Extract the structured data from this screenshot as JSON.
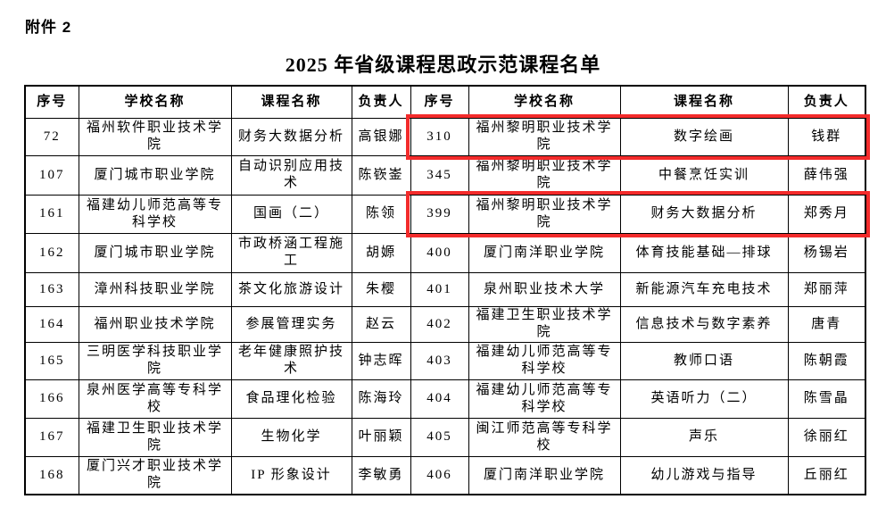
{
  "page": {
    "attachment_label": "附件 2",
    "title": "2025 年省级课程思政示范课程名单"
  },
  "highlight": {
    "color": "#f32b2b",
    "highlighted_row_numbers": [
      "310",
      "399"
    ]
  },
  "table": {
    "headers": [
      "序号",
      "学校名称",
      "课程名称",
      "负责人",
      "序号",
      "学校名称",
      "课程名称",
      "负责人"
    ],
    "rows": [
      {
        "l_no": "72",
        "l_school": "福州软件职业技术学院",
        "l_course": "财务大数据分析",
        "l_leader": "高银娜",
        "r_no": "310",
        "r_school": "福州黎明职业技术学院",
        "r_course": "数字绘画",
        "r_leader": "钱群"
      },
      {
        "l_no": "107",
        "l_school": "厦门城市职业学院",
        "l_course": "自动识别应用技术",
        "l_leader": "陈嵚崟",
        "r_no": "345",
        "r_school": "福州黎明职业技术学院",
        "r_course": "中餐烹饪实训",
        "r_leader": "薛伟强"
      },
      {
        "l_no": "161",
        "l_school": "福建幼儿师范高等专科学校",
        "l_course": "国画（二）",
        "l_leader": "陈领",
        "r_no": "399",
        "r_school": "福州黎明职业技术学院",
        "r_course": "财务大数据分析",
        "r_leader": "郑秀月"
      },
      {
        "l_no": "162",
        "l_school": "厦门城市职业学院",
        "l_course": "市政桥涵工程施工",
        "l_leader": "胡嫄",
        "r_no": "400",
        "r_school": "厦门南洋职业学院",
        "r_course": "体育技能基础—排球",
        "r_leader": "杨锡岩"
      },
      {
        "l_no": "163",
        "l_school": "漳州科技职业学院",
        "l_course": "茶文化旅游设计",
        "l_leader": "朱樱",
        "r_no": "401",
        "r_school": "泉州职业技术大学",
        "r_course": "新能源汽车充电技术",
        "r_leader": "郑丽萍"
      },
      {
        "l_no": "164",
        "l_school": "福州职业技术学院",
        "l_course": "参展管理实务",
        "l_leader": "赵云",
        "r_no": "402",
        "r_school": "福建卫生职业技术学院",
        "r_course": "信息技术与数字素养",
        "r_leader": "唐青"
      },
      {
        "l_no": "165",
        "l_school": "三明医学科技职业学院",
        "l_course": "老年健康照护技术",
        "l_leader": "钟志晖",
        "r_no": "403",
        "r_school": "福建幼儿师范高等专科学校",
        "r_course": "教师口语",
        "r_leader": "陈朝霞"
      },
      {
        "l_no": "166",
        "l_school": "泉州医学高等专科学校",
        "l_course": "食品理化检验",
        "l_leader": "陈海玲",
        "r_no": "404",
        "r_school": "福建幼儿师范高等专科学校",
        "r_course": "英语听力（二）",
        "r_leader": "陈雪晶"
      },
      {
        "l_no": "167",
        "l_school": "福建卫生职业技术学院",
        "l_course": "生物化学",
        "l_leader": "叶丽颖",
        "r_no": "405",
        "r_school": "闽江师范高等专科学校",
        "r_course": "声乐",
        "r_leader": "徐丽红"
      },
      {
        "l_no": "168",
        "l_school": "厦门兴才职业技术学院",
        "l_course": "IP 形象设计",
        "l_leader": "李敏勇",
        "r_no": "406",
        "r_school": "厦门南洋职业学院",
        "r_course": "幼儿游戏与指导",
        "r_leader": "丘丽红"
      }
    ]
  }
}
